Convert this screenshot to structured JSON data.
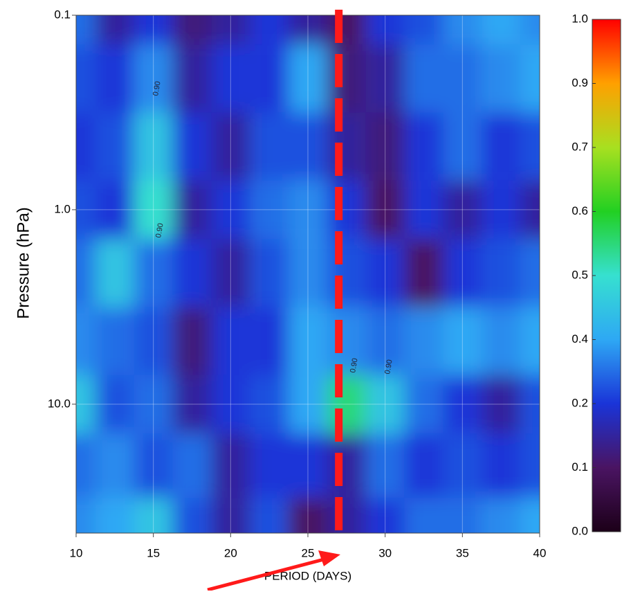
{
  "chart_data": {
    "type": "contour",
    "xlabel": "PERIOD (DAYS)",
    "ylabel": "Pressure (hPa)",
    "x": [
      10,
      12.5,
      15,
      17.5,
      20,
      22.5,
      25,
      27.5,
      30,
      32.5,
      35,
      37.5,
      40
    ],
    "y": [
      0.1,
      0.2,
      0.5,
      1,
      2,
      5,
      10,
      20,
      46
    ],
    "z": [
      [
        0.3,
        0.15,
        0.2,
        0.12,
        0.15,
        0.2,
        0.15,
        0.1,
        0.2,
        0.25,
        0.35,
        0.4,
        0.35
      ],
      [
        0.25,
        0.2,
        0.35,
        0.15,
        0.2,
        0.2,
        0.4,
        0.12,
        0.15,
        0.3,
        0.3,
        0.35,
        0.4
      ],
      [
        0.2,
        0.25,
        0.45,
        0.2,
        0.15,
        0.25,
        0.25,
        0.15,
        0.12,
        0.2,
        0.3,
        0.2,
        0.25
      ],
      [
        0.25,
        0.2,
        0.5,
        0.15,
        0.2,
        0.3,
        0.35,
        0.2,
        0.1,
        0.2,
        0.15,
        0.2,
        0.15
      ],
      [
        0.3,
        0.45,
        0.3,
        0.2,
        0.15,
        0.25,
        0.35,
        0.25,
        0.2,
        0.1,
        0.2,
        0.25,
        0.3
      ],
      [
        0.35,
        0.3,
        0.25,
        0.12,
        0.2,
        0.2,
        0.4,
        0.35,
        0.3,
        0.35,
        0.4,
        0.35,
        0.4
      ],
      [
        0.45,
        0.25,
        0.3,
        0.15,
        0.2,
        0.25,
        0.4,
        0.55,
        0.45,
        0.3,
        0.2,
        0.15,
        0.25
      ],
      [
        0.3,
        0.35,
        0.25,
        0.3,
        0.15,
        0.2,
        0.2,
        0.15,
        0.3,
        0.2,
        0.25,
        0.2,
        0.25
      ],
      [
        0.35,
        0.4,
        0.45,
        0.25,
        0.15,
        0.25,
        0.1,
        0.15,
        0.2,
        0.3,
        0.3,
        0.35,
        0.4
      ]
    ],
    "xlim": [
      10,
      40
    ],
    "xticks": [
      10,
      15,
      20,
      25,
      30,
      35,
      40
    ],
    "ylim": [
      46,
      0.1
    ],
    "yticks": [
      0.1,
      {
        "value": 1,
        "label": "1.0"
      },
      {
        "value": 10,
        "label": "10.0"
      }
    ],
    "log_y": true,
    "grid": true,
    "colorbar_ticks": [
      {
        "value": 0,
        "label": "0.0"
      },
      0.1,
      0.2,
      0.4,
      0.5,
      0.6,
      0.7,
      0.9,
      {
        "value": 1,
        "label": "1.0"
      }
    ],
    "colormap": [
      "#1c0018",
      "#4a1462",
      "#1a34d8",
      "#2ea8f4",
      "#36e0d0",
      "#22d022",
      "#a8e020",
      "#ffa000",
      "#ff0000"
    ],
    "contour_label": {
      "value": 0.9,
      "label": "0.90"
    },
    "vline": {
      "x": 27,
      "color": "#ff1a1a"
    }
  }
}
